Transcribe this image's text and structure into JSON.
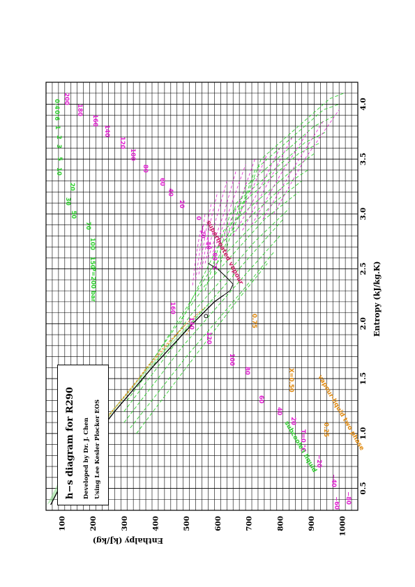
{
  "chart_data": {
    "type": "line",
    "title": "h−s diagram for R290",
    "subtitle_lines": [
      "Developed by Dr. J. Chen",
      "Using Lee Kesler Plocker EOS"
    ],
    "xlabel": "Entropy  (kJ/kg.K)",
    "ylabel": "Enthalpy  (kJ/kg)",
    "xlim": [
      0.3,
      4.2
    ],
    "ylim": [
      50,
      1050
    ],
    "x_ticks": [
      "0.5",
      "1.0",
      "1.5",
      "2.0",
      "2.5",
      "3.0",
      "3.5",
      "4.0"
    ],
    "y_ticks": [
      "100",
      "200",
      "300",
      "400",
      "500",
      "600",
      "700",
      "800",
      "900",
      "1000"
    ],
    "grid": true,
    "orientation": "rotated 90° counter-clockwise",
    "region_labels": {
      "superheated": "superheated vapour",
      "two_phase": "vapour-liquid two phase",
      "subcooled": "subcooled liquid"
    },
    "saturation_dome": {
      "liquid": [
        [
          0.35,
          65
        ],
        [
          0.6,
          110
        ],
        [
          0.8,
          160
        ],
        [
          1.0,
          215
        ],
        [
          1.2,
          270
        ],
        [
          1.4,
          330
        ],
        [
          1.6,
          390
        ],
        [
          1.8,
          455
        ],
        [
          2.0,
          520
        ],
        [
          2.1,
          555
        ],
        [
          2.2,
          590
        ],
        [
          2.26,
          620
        ]
      ],
      "vapour": [
        [
          2.26,
          620
        ],
        [
          2.3,
          640
        ],
        [
          2.36,
          650
        ],
        [
          2.42,
          630
        ],
        [
          2.5,
          600
        ],
        [
          2.55,
          570
        ]
      ]
    },
    "critical_point": [
      2.07,
      563
    ],
    "quality_lines": [
      {
        "label": "X=0.50",
        "points": [
          [
            1.15,
            245
          ],
          [
            1.4,
            322
          ],
          [
            1.6,
            372
          ],
          [
            1.8,
            432
          ],
          [
            2.0,
            500
          ],
          [
            2.15,
            560
          ]
        ]
      },
      {
        "label": "0.25",
        "points": [
          [
            0.75,
            158
          ],
          [
            1.0,
            210
          ],
          [
            1.2,
            262
          ],
          [
            1.4,
            318
          ],
          [
            1.6,
            376
          ],
          [
            2.0,
            500
          ]
        ]
      },
      {
        "label": "0.75",
        "points": [
          [
            1.9,
            500
          ],
          [
            2.0,
            520
          ],
          [
            2.07,
            545
          ]
        ]
      }
    ],
    "isotherm_labels_superheated": [
      "−60 °C",
      "−40",
      "−20",
      "0",
      "20",
      "40",
      "60",
      "80",
      "100",
      "120",
      "140",
      "160",
      "180",
      "200"
    ],
    "isotherm_labels_liquid": [
      "T=0 °C",
      "−20",
      "−40",
      "−60",
      "−80"
    ],
    "isotherm_labels_dome": [
      "20",
      "40",
      "60",
      "80",
      "100",
      "120",
      "140",
      "160"
    ],
    "isobar_labels": [
      "P=200 bar",
      "150",
      "100",
      "70",
      "50",
      "30",
      "20",
      "10",
      "5",
      "3",
      "2",
      "1",
      "0.6",
      "0.4"
    ],
    "isotherms": [
      {
        "T": "200",
        "points": [
          [
            3.0,
            780
          ],
          [
            3.5,
            880
          ],
          [
            3.95,
            990
          ]
        ]
      },
      {
        "T": "180",
        "points": [
          [
            2.95,
            745
          ],
          [
            3.4,
            840
          ],
          [
            3.85,
            940
          ]
        ]
      },
      {
        "T": "160",
        "points": [
          [
            2.9,
            710
          ],
          [
            3.35,
            800
          ],
          [
            3.75,
            890
          ]
        ]
      },
      {
        "T": "140",
        "points": [
          [
            2.85,
            680
          ],
          [
            3.3,
            765
          ],
          [
            3.7,
            840
          ]
        ]
      },
      {
        "T": "120",
        "points": [
          [
            2.8,
            650
          ],
          [
            3.2,
            730
          ],
          [
            3.6,
            800
          ]
        ]
      },
      {
        "T": "100",
        "points": [
          [
            2.75,
            620
          ],
          [
            3.15,
            700
          ],
          [
            3.55,
            760
          ]
        ]
      },
      {
        "T": "80",
        "points": [
          [
            2.7,
            600
          ],
          [
            3.1,
            670
          ],
          [
            3.5,
            720
          ]
        ]
      },
      {
        "T": "60",
        "points": [
          [
            2.65,
            585
          ],
          [
            3.05,
            640
          ],
          [
            3.45,
            690
          ]
        ]
      },
      {
        "T": "40",
        "points": [
          [
            2.6,
            570
          ],
          [
            3.0,
            620
          ],
          [
            3.4,
            660
          ]
        ]
      },
      {
        "T": "20",
        "points": [
          [
            2.55,
            560
          ],
          [
            2.95,
            595
          ],
          [
            3.3,
            630
          ]
        ]
      },
      {
        "T": "0",
        "points": [
          [
            2.5,
            550
          ],
          [
            2.9,
            575
          ],
          [
            3.2,
            600
          ]
        ]
      },
      {
        "T": "−20",
        "points": [
          [
            2.45,
            540
          ],
          [
            2.8,
            560
          ],
          [
            3.1,
            580
          ]
        ]
      },
      {
        "T": "−40",
        "points": [
          [
            2.4,
            530
          ],
          [
            2.7,
            545
          ],
          [
            3.0,
            560
          ]
        ]
      },
      {
        "T": "−60",
        "points": [
          [
            2.35,
            520
          ],
          [
            2.6,
            530
          ],
          [
            2.85,
            545
          ]
        ]
      }
    ],
    "isobars": [
      {
        "P": "200",
        "points": [
          [
            1.0,
            340
          ],
          [
            1.6,
            500
          ],
          [
            2.2,
            660
          ],
          [
            2.55,
            760
          ]
        ]
      },
      {
        "P": "150",
        "points": [
          [
            1.05,
            320
          ],
          [
            1.7,
            500
          ],
          [
            2.3,
            680
          ],
          [
            2.65,
            780
          ]
        ]
      },
      {
        "P": "100",
        "points": [
          [
            1.1,
            300
          ],
          [
            1.8,
            490
          ],
          [
            2.45,
            690
          ],
          [
            2.8,
            800
          ]
        ]
      },
      {
        "P": "70",
        "points": [
          [
            1.2,
            300
          ],
          [
            1.95,
            500
          ],
          [
            2.6,
            700
          ],
          [
            2.95,
            810
          ]
        ]
      },
      {
        "P": "50",
        "points": [
          [
            1.3,
            310
          ],
          [
            2.1,
            520
          ],
          [
            2.75,
            720
          ],
          [
            3.05,
            830
          ]
        ]
      },
      {
        "P": "30",
        "points": [
          [
            1.5,
            350
          ],
          [
            2.35,
            560
          ],
          [
            2.95,
            750
          ],
          [
            3.2,
            860
          ]
        ]
      },
      {
        "P": "20",
        "points": [
          [
            1.7,
            400
          ],
          [
            2.5,
            580
          ],
          [
            3.1,
            780
          ],
          [
            3.3,
            870
          ]
        ]
      },
      {
        "P": "10",
        "points": [
          [
            2.0,
            480
          ],
          [
            2.7,
            600
          ],
          [
            3.25,
            810
          ],
          [
            3.4,
            890
          ]
        ]
      },
      {
        "P": "5",
        "points": [
          [
            2.3,
            560
          ],
          [
            2.85,
            620
          ],
          [
            3.4,
            840
          ],
          [
            3.55,
            910
          ]
        ]
      },
      {
        "P": "3",
        "points": [
          [
            2.45,
            590
          ],
          [
            3.0,
            640
          ],
          [
            3.55,
            860
          ],
          [
            3.65,
            930
          ]
        ]
      },
      {
        "P": "2",
        "points": [
          [
            2.55,
            610
          ],
          [
            3.1,
            660
          ],
          [
            3.65,
            880
          ],
          [
            3.75,
            950
          ]
        ]
      },
      {
        "P": "1",
        "points": [
          [
            2.7,
            630
          ],
          [
            3.25,
            690
          ],
          [
            3.8,
            910
          ],
          [
            3.9,
            980
          ]
        ]
      },
      {
        "P": "0.6",
        "points": [
          [
            2.85,
            650
          ],
          [
            3.4,
            720
          ],
          [
            3.95,
            940
          ],
          [
            4.0,
            990
          ]
        ]
      },
      {
        "P": "0.4",
        "points": [
          [
            2.95,
            665
          ],
          [
            3.5,
            740
          ],
          [
            4.05,
            960
          ],
          [
            4.1,
            1005
          ]
        ]
      }
    ]
  },
  "colors": {
    "grid": "#000000",
    "isotherm": "#e020d0",
    "isobar": "#30d030",
    "quality": "#e08a10",
    "dome": "#000000",
    "superheated_label": "#d0206a",
    "subcooled_label": "#30d030",
    "twophase_label": "#e08a10"
  }
}
